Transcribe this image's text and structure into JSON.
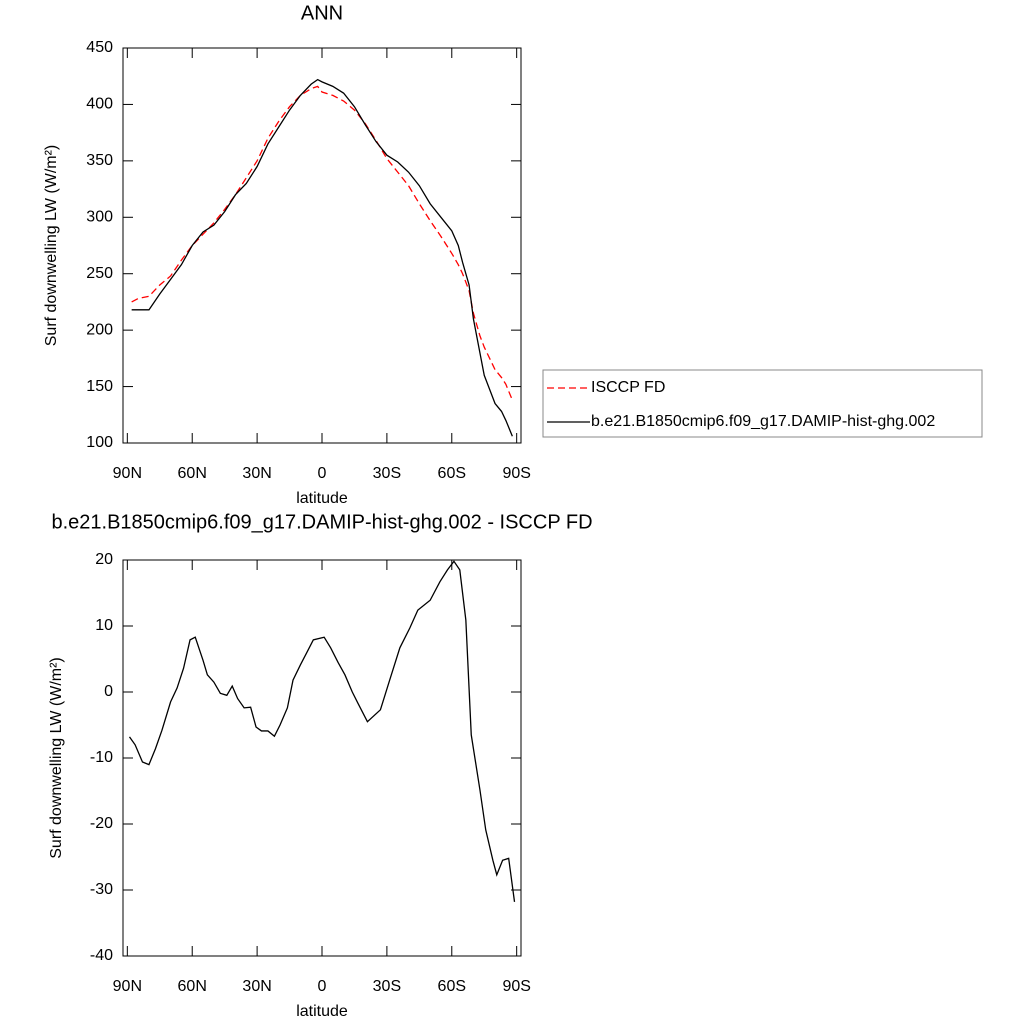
{
  "chart_data": [
    {
      "type": "line",
      "title": "ANN",
      "x_label": "latitude",
      "y_label": "Surf downwelling LW (W/m²)",
      "x": [
        88,
        85,
        80,
        75,
        70,
        65,
        60,
        55,
        50,
        45,
        40,
        35,
        30,
        25,
        20,
        15,
        10,
        5,
        2,
        0,
        -5,
        -10,
        -15,
        -20,
        -25,
        -30,
        -35,
        -40,
        -45,
        -50,
        -55,
        -60,
        -63,
        -65,
        -68,
        -70,
        -73,
        -75,
        -80,
        -83,
        -85,
        -88
      ],
      "series": [
        {
          "name": "ISCCP FD",
          "color": "#ff0000",
          "dashed": true,
          "values": [
            225,
            228,
            230,
            240,
            248,
            262,
            275,
            285,
            295,
            307,
            320,
            335,
            350,
            370,
            385,
            398,
            408,
            414,
            416,
            411,
            408,
            403,
            395,
            383,
            368,
            352,
            340,
            328,
            312,
            297,
            283,
            268,
            258,
            250,
            235,
            215,
            195,
            185,
            165,
            158,
            152,
            138
          ]
        },
        {
          "name": "b.e21.B1850cmip6.f09_g17.DAMIP-hist-ghg.002",
          "color": "#000000",
          "dashed": false,
          "values": [
            218,
            218,
            218,
            232,
            245,
            258,
            275,
            287,
            293,
            305,
            320,
            330,
            345,
            365,
            380,
            395,
            408,
            418,
            422,
            420,
            416,
            410,
            398,
            382,
            367,
            355,
            349,
            340,
            328,
            312,
            300,
            288,
            275,
            260,
            240,
            210,
            180,
            160,
            135,
            128,
            120,
            106
          ]
        }
      ],
      "xlim": [
        92,
        -92
      ],
      "xticks": [
        {
          "value": 90,
          "label": "90N"
        },
        {
          "value": 60,
          "label": "60N"
        },
        {
          "value": 30,
          "label": "30N"
        },
        0,
        {
          "value": -30,
          "label": "30S"
        },
        {
          "value": -60,
          "label": "60S"
        },
        {
          "value": -90,
          "label": "90S"
        }
      ],
      "ylim": [
        100,
        450
      ],
      "yticks": [
        100,
        150,
        200,
        250,
        300,
        350,
        400,
        450
      ],
      "legend": "right"
    },
    {
      "type": "line",
      "title": "b.e21.B1850cmip6.f09_g17.DAMIP-hist-ghg.002 - ISCCP FD",
      "x_label": "latitude",
      "y_label": "Surf downwelling LW (W/m²)",
      "x": [
        89,
        86.4,
        83,
        80,
        77,
        74,
        70,
        67,
        64,
        61,
        58.6,
        55,
        53,
        50,
        47,
        44,
        41.5,
        39,
        36,
        33,
        30.5,
        28,
        25,
        22,
        19.4,
        16,
        13.4,
        10,
        7,
        4,
        -1,
        -4,
        -7.4,
        -10.6,
        -14,
        -16.6,
        -21,
        -27,
        -31,
        -36,
        -40.6,
        -44.3,
        -50,
        -54.5,
        -58,
        -61,
        -63.7,
        -66.5,
        -69,
        -73,
        -75.7,
        -79,
        -80.8,
        -83.5,
        -86.3,
        -89
      ],
      "values": [
        -6.8,
        -8,
        -10.6,
        -11,
        -8.6,
        -5.8,
        -1.5,
        0.6,
        3.6,
        7.9,
        8.3,
        4.8,
        2.6,
        1.5,
        -0.2,
        -0.5,
        0.9,
        -1,
        -2.4,
        -2.3,
        -5.3,
        -5.9,
        -5.9,
        -6.7,
        -5,
        -2.4,
        1.8,
        4.1,
        6,
        7.9,
        8.3,
        6.7,
        4.5,
        2.6,
        0,
        -1.7,
        -4.5,
        -2.7,
        1.5,
        6.7,
        9.7,
        12.4,
        13.9,
        16.7,
        18.5,
        19.8,
        18.5,
        10.9,
        -6.5,
        -14.8,
        -20.9,
        -25.5,
        -27.7,
        -25.5,
        -25.2,
        -31.8
      ],
      "color": "#000000",
      "xlim": [
        92,
        -92
      ],
      "xticks": [
        {
          "value": 90,
          "label": "90N"
        },
        {
          "value": 60,
          "label": "60N"
        },
        {
          "value": 30,
          "label": "30N"
        },
        0,
        {
          "value": -30,
          "label": "30S"
        },
        {
          "value": -60,
          "label": "60S"
        },
        {
          "value": -90,
          "label": "90S"
        }
      ],
      "ylim": [
        -40,
        20
      ],
      "yticks": [
        -40,
        -30,
        -20,
        -10,
        0,
        10,
        20
      ]
    }
  ]
}
